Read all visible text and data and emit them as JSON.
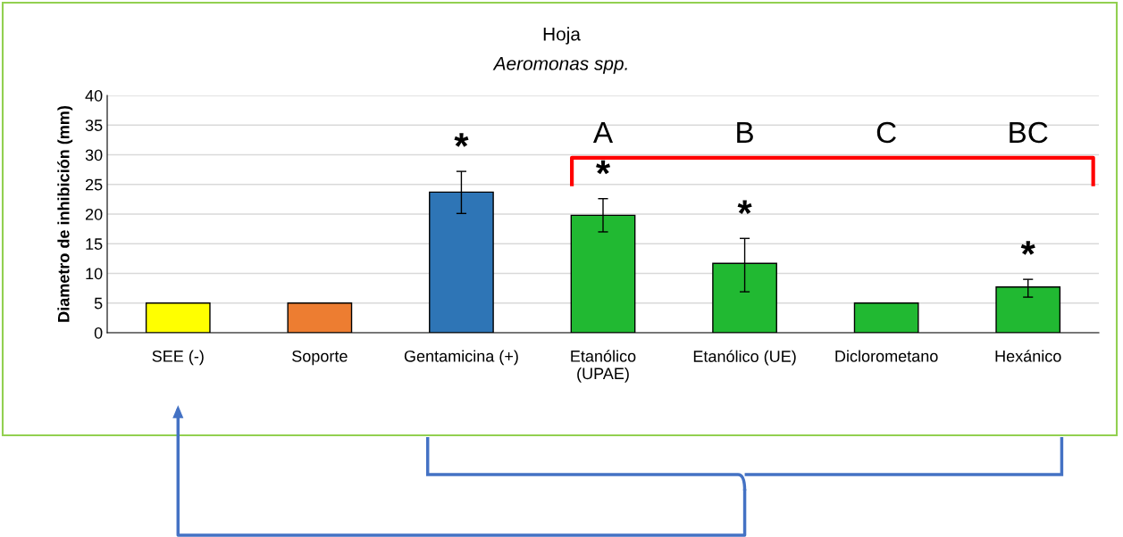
{
  "chart_data": {
    "type": "bar",
    "title": "Hoja",
    "subtitle": "Aeromonas spp.",
    "ylabel": "Diametro de inhibición (mm)",
    "categories": [
      "SEE (-)",
      "Soporte",
      "Gentamicina (+)",
      "Etanólico\n(UPAE)",
      "Etanólico (UE)",
      "Diclorometano",
      "Hexánico"
    ],
    "values": [
      5,
      5,
      23.7,
      19.8,
      11.7,
      5,
      7.7
    ],
    "colors": [
      "#ffff00",
      "#ed7d31",
      "#2e75b6",
      "#21b932",
      "#21b932",
      "#21b932",
      "#21b932"
    ],
    "errors": [
      null,
      null,
      [
        20.1,
        27.2
      ],
      [
        17.0,
        22.6
      ],
      [
        6.9,
        15.9
      ],
      null,
      [
        6.0,
        9.0
      ]
    ],
    "ylim": [
      0,
      40
    ],
    "yticks": [
      0,
      5,
      10,
      15,
      20,
      25,
      30,
      35,
      40
    ],
    "grid": "y",
    "annotations": [
      "*",
      "*",
      "*",
      "*",
      "A",
      "B",
      "C",
      "BC"
    ]
  }
}
